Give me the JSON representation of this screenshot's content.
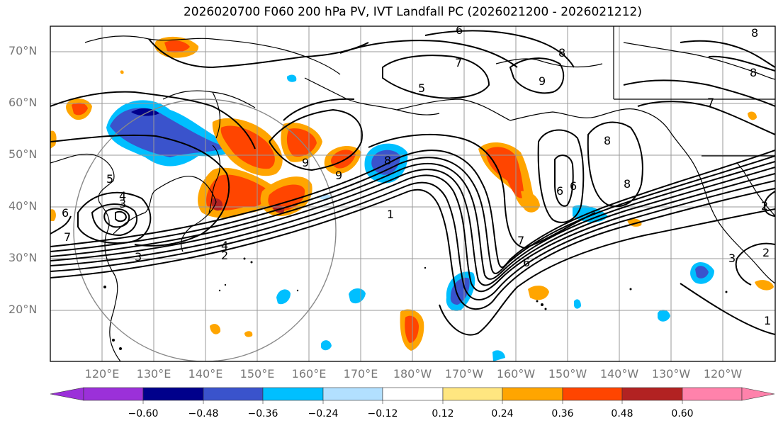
{
  "title": "2026020700 F060 200 hPa PV, IVT Landfall PC (2026021200 - 2026021212)",
  "latitude_labels": [
    "70°N",
    "60°N",
    "50°N",
    "40°N",
    "30°N",
    "20°N"
  ],
  "longitude_labels": [
    "120°E",
    "130°E",
    "140°E",
    "150°E",
    "160°E",
    "170°E",
    "180°W",
    "170°W",
    "160°W",
    "150°W",
    "140°W",
    "130°W",
    "120°W"
  ],
  "contour_labels": [
    "6",
    "7",
    "8",
    "8",
    "5",
    "9",
    "7",
    "5",
    "4",
    "3",
    "6",
    "7",
    "9",
    "9",
    "8",
    "8",
    "8",
    "6",
    "6",
    "8",
    "2",
    "3",
    "4",
    "2",
    "3",
    "1",
    "7",
    "6",
    "1",
    "2"
  ],
  "colorbar": {
    "tick_labels": [
      "−0.60",
      "−0.48",
      "−0.36",
      "−0.24",
      "−0.12",
      "0.12",
      "0.24",
      "0.36",
      "0.48",
      "0.60"
    ],
    "colors": [
      "#9b30d9",
      "#00008b",
      "#3a53cc",
      "#00bfff",
      "#b2e0ff",
      "#ffffff",
      "#ffe680",
      "#ffa500",
      "#ff4500",
      "#b22222",
      "#ff82ab"
    ]
  },
  "colors": {
    "neg_strong": "#3a53cc",
    "neg_mid": "#00bfff",
    "neg_light": "#b2e0ff",
    "pos_light": "#ffe680",
    "pos_mid": "#ffa500",
    "pos_strong": "#ff4500",
    "pos_max": "#b22222"
  }
}
